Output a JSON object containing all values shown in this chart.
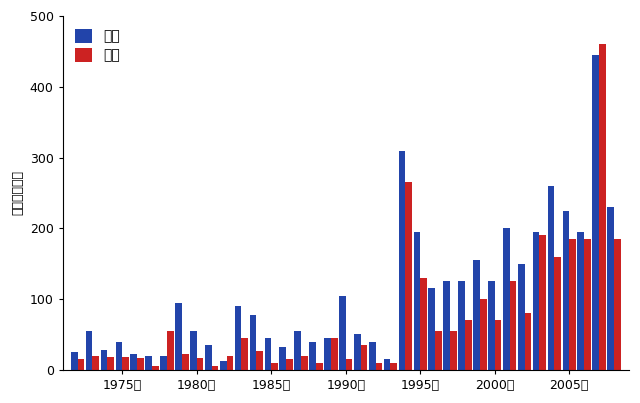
{
  "years": [
    1972,
    1973,
    1974,
    1975,
    1976,
    1977,
    1978,
    1979,
    1980,
    1981,
    1982,
    1983,
    1984,
    1985,
    1986,
    1987,
    1988,
    1989,
    1990,
    1991,
    1992,
    1993,
    1994,
    1995,
    1996,
    1997,
    1998,
    1999,
    2000,
    2001,
    2002,
    2003,
    2004,
    2005,
    2006,
    2007,
    2008
  ],
  "male": [
    25,
    55,
    28,
    40,
    22,
    20,
    20,
    95,
    55,
    35,
    12,
    90,
    78,
    45,
    32,
    55,
    40,
    45,
    105,
    50,
    40,
    15,
    310,
    195,
    115,
    125,
    125,
    155,
    125,
    200,
    150,
    195,
    260,
    225,
    195,
    445,
    230
  ],
  "female": [
    15,
    20,
    18,
    18,
    17,
    5,
    55,
    22,
    17,
    5,
    20,
    45,
    27,
    10,
    15,
    20,
    10,
    45,
    15,
    35,
    10,
    10,
    265,
    130,
    55,
    55,
    70,
    100,
    70,
    125,
    80,
    190,
    160,
    185,
    185,
    460,
    185
  ],
  "male_color": "#2244aa",
  "female_color": "#cc2222",
  "ylabel": "死亡数（人）",
  "ylim": [
    0,
    500
  ],
  "yticks": [
    0,
    100,
    200,
    300,
    400,
    500
  ],
  "legend_male": "男性",
  "legend_female": "女性",
  "background_color": "#ffffff",
  "bar_width": 0.45,
  "xtick_years": [
    1975,
    1980,
    1985,
    1990,
    1995,
    2000,
    2005
  ]
}
